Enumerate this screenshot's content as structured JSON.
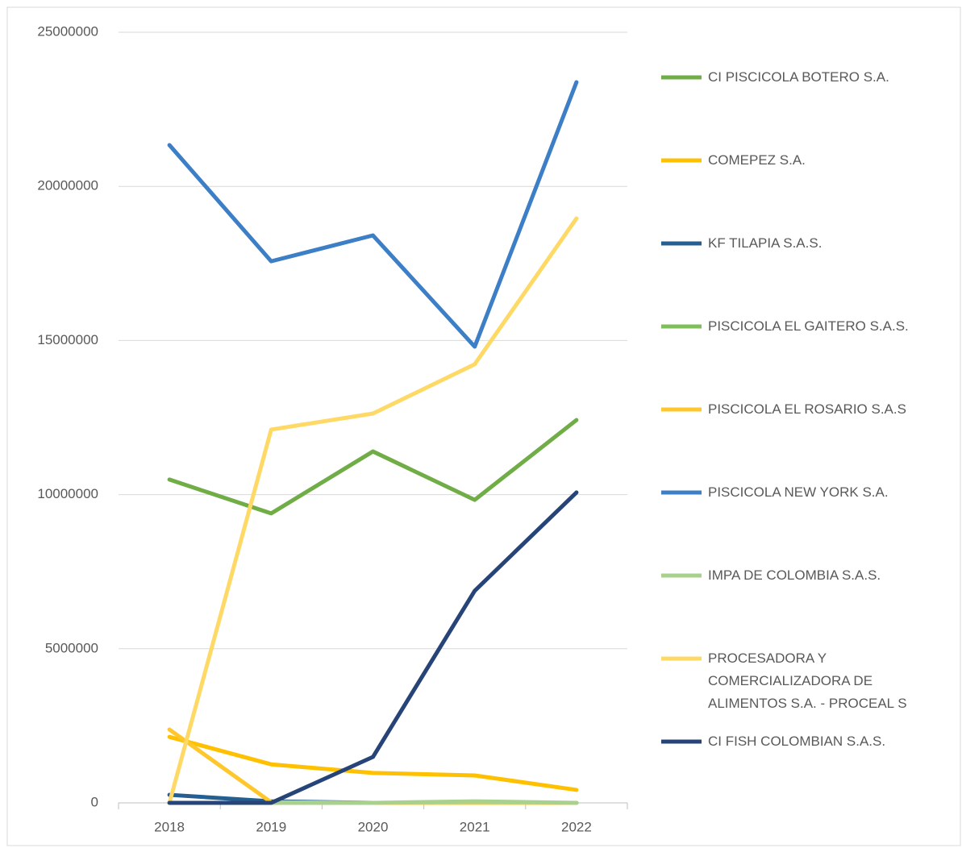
{
  "chart_data": {
    "type": "line",
    "categories": [
      "2018",
      "2019",
      "2020",
      "2021",
      "2022"
    ],
    "ylim": [
      0,
      25000000
    ],
    "yticks": [
      0,
      5000000,
      10000000,
      15000000,
      20000000,
      25000000
    ],
    "grid": true,
    "legend": "right",
    "series": [
      {
        "name": "CI PISCICOLA BOTERO S.A.",
        "color": "#70ad47",
        "values": [
          10490000,
          9390000,
          11400000,
          9830000,
          12420000
        ]
      },
      {
        "name": "COMEPEZ S.A.",
        "color": "#ffc000",
        "values": [
          2140000,
          1250000,
          970000,
          890000,
          420000
        ]
      },
      {
        "name": "KF TILAPIA S.A.S.",
        "color": "#255e91",
        "values": [
          260000,
          50000,
          0,
          0,
          0
        ]
      },
      {
        "name": "PISCICOLA EL GAITERO S.A.S.",
        "color": "#7fbf5a",
        "values": [
          0,
          0,
          0,
          0,
          0
        ]
      },
      {
        "name": "PISCICOLA EL ROSARIO S.A.S",
        "color": "#ffc72c",
        "values": [
          2380000,
          20000,
          0,
          0,
          0
        ]
      },
      {
        "name": "PISCICOLA NEW YORK S.A.",
        "color": "#3d7fc6",
        "values": [
          21340000,
          17570000,
          18410000,
          14800000,
          23380000
        ]
      },
      {
        "name": "IMPA DE COLOMBIA S.A.S.",
        "color": "#a9d18e",
        "values": [
          0,
          0,
          0,
          50000,
          0
        ]
      },
      {
        "name": "PROCESADORA Y COMERCIALIZADORA DE ALIMENTOS S.A. - PROCEAL S",
        "color": "#ffd966",
        "values": [
          0,
          12110000,
          12630000,
          14230000,
          18960000
        ]
      },
      {
        "name": "CI FISH COLOMBIAN S.A.S.",
        "color": "#264478",
        "values": [
          0,
          0,
          1490000,
          6880000,
          10070000
        ]
      }
    ]
  }
}
